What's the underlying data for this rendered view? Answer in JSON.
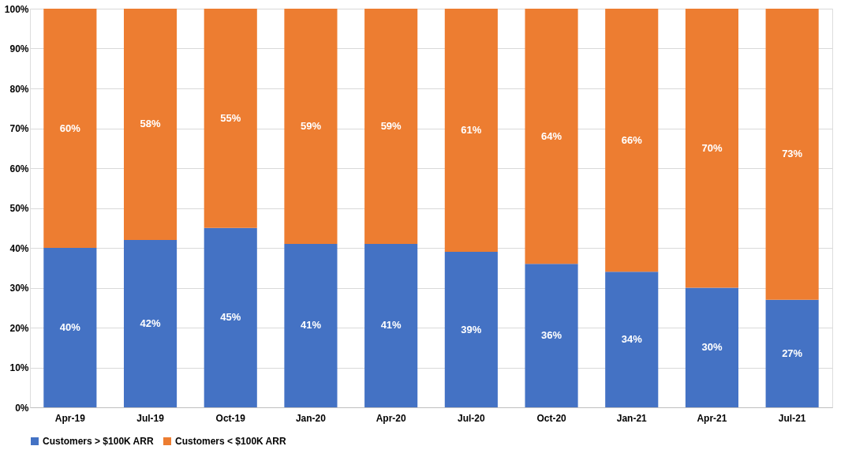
{
  "chart_data": {
    "type": "bar",
    "stacked": true,
    "categories": [
      "Apr-19",
      "Jul-19",
      "Oct-19",
      "Jan-20",
      "Apr-20",
      "Jul-20",
      "Oct-20",
      "Jan-21",
      "Apr-21",
      "Jul-21"
    ],
    "series": [
      {
        "name": "Customers > $100K ARR",
        "color": "#4472c4",
        "values": [
          40,
          42,
          45,
          41,
          41,
          39,
          36,
          34,
          30,
          27
        ],
        "value_labels": [
          "40%",
          "42%",
          "45%",
          "41%",
          "41%",
          "39%",
          "36%",
          "34%",
          "30%",
          "27%"
        ]
      },
      {
        "name": "Customers < $100K ARR",
        "color": "#ed7d31",
        "values": [
          60,
          58,
          55,
          59,
          59,
          61,
          64,
          66,
          70,
          73
        ],
        "value_labels": [
          "60%",
          "58%",
          "55%",
          "59%",
          "59%",
          "61%",
          "64%",
          "66%",
          "70%",
          "73%"
        ]
      }
    ],
    "ylim": [
      0,
      100
    ],
    "yticks": [
      {
        "value": 0,
        "label": "0%"
      },
      {
        "value": 10,
        "label": "10%"
      },
      {
        "value": 20,
        "label": "20%"
      },
      {
        "value": 30,
        "label": "30%"
      },
      {
        "value": 40,
        "label": "40%"
      },
      {
        "value": 50,
        "label": "50%"
      },
      {
        "value": 60,
        "label": "60%"
      },
      {
        "value": 70,
        "label": "70%"
      },
      {
        "value": 80,
        "label": "80%"
      },
      {
        "value": 90,
        "label": "90%"
      },
      {
        "value": 100,
        "label": "100%"
      }
    ],
    "grid": "y",
    "legend": "bottom"
  }
}
